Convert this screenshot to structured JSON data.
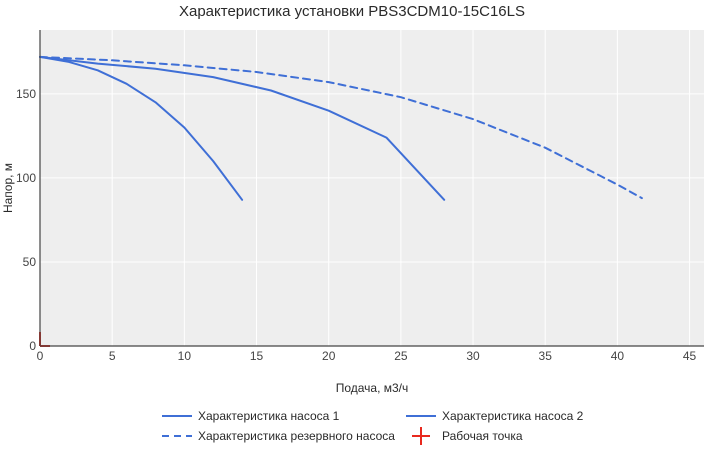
{
  "chart_data": {
    "type": "line",
    "title": "Характеристика установки PBS3CDM10-15C16LS",
    "xlabel": "Подача, м3/ч",
    "ylabel": "Напор, м",
    "xlim": [
      0,
      46
    ],
    "ylim": [
      0,
      188
    ],
    "x_ticks": [
      0,
      5,
      10,
      15,
      20,
      25,
      30,
      35,
      40,
      45
    ],
    "y_ticks": [
      0,
      50,
      100,
      150
    ],
    "grid": true,
    "legend_position": "bottom",
    "series": [
      {
        "name": "Характеристика насоса 1",
        "color": "#3f6fd6",
        "dash": "solid",
        "x": [
          0,
          2,
          4,
          6,
          8,
          10,
          12,
          14
        ],
        "y": [
          172,
          169,
          164,
          156,
          145,
          130,
          110,
          87
        ]
      },
      {
        "name": "Характеристика насоса 2",
        "color": "#3f6fd6",
        "dash": "solid",
        "x": [
          0,
          4,
          8,
          12,
          16,
          20,
          24,
          28
        ],
        "y": [
          172,
          168,
          165,
          160,
          152,
          140,
          124,
          87
        ]
      },
      {
        "name": "Характеристика резервного насоса",
        "color": "#3f6fd6",
        "dash": "dashed",
        "x": [
          0,
          5,
          10,
          15,
          20,
          25,
          30,
          35,
          40,
          41.7
        ],
        "y": [
          172,
          170,
          167,
          163,
          157,
          148,
          135,
          118,
          96,
          88
        ]
      }
    ],
    "work_point": {
      "name": "Рабочая точка",
      "color": "#e8291e",
      "x": 0,
      "y": 0
    }
  }
}
